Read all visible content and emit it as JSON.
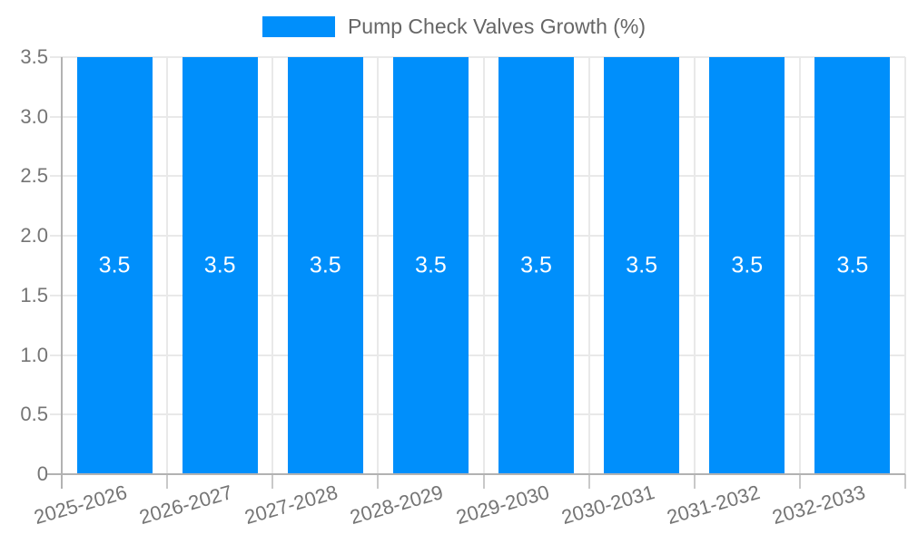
{
  "chart_data": {
    "type": "bar",
    "legend": "Pump Check Valves Growth (%)",
    "legend_position": "top",
    "categories": [
      "2025-2026",
      "2026-2027",
      "2027-2028",
      "2028-2029",
      "2029-2030",
      "2030-2031",
      "2031-2032",
      "2032-2033"
    ],
    "values": [
      3.5,
      3.5,
      3.5,
      3.5,
      3.5,
      3.5,
      3.5,
      3.5
    ],
    "bar_labels": [
      "3.5",
      "3.5",
      "3.5",
      "3.5",
      "3.5",
      "3.5",
      "3.5",
      "3.5"
    ],
    "xlabel": "",
    "ylabel": "",
    "ylim": [
      0,
      3.5
    ],
    "ytick_labels": [
      "3.5",
      "3.0",
      "2.5",
      "2.0",
      "1.5",
      "1.0",
      "0.5",
      "0"
    ],
    "grid": true,
    "colors": {
      "bar": "#008FFB",
      "grid": "#e9e9e9",
      "axis_line": "#b2b2b2",
      "tick": "#c9c9c9",
      "tick_label": "#757575",
      "legend_text": "#666666",
      "bar_label_text": "#ffffff",
      "background": "#ffffff"
    }
  }
}
